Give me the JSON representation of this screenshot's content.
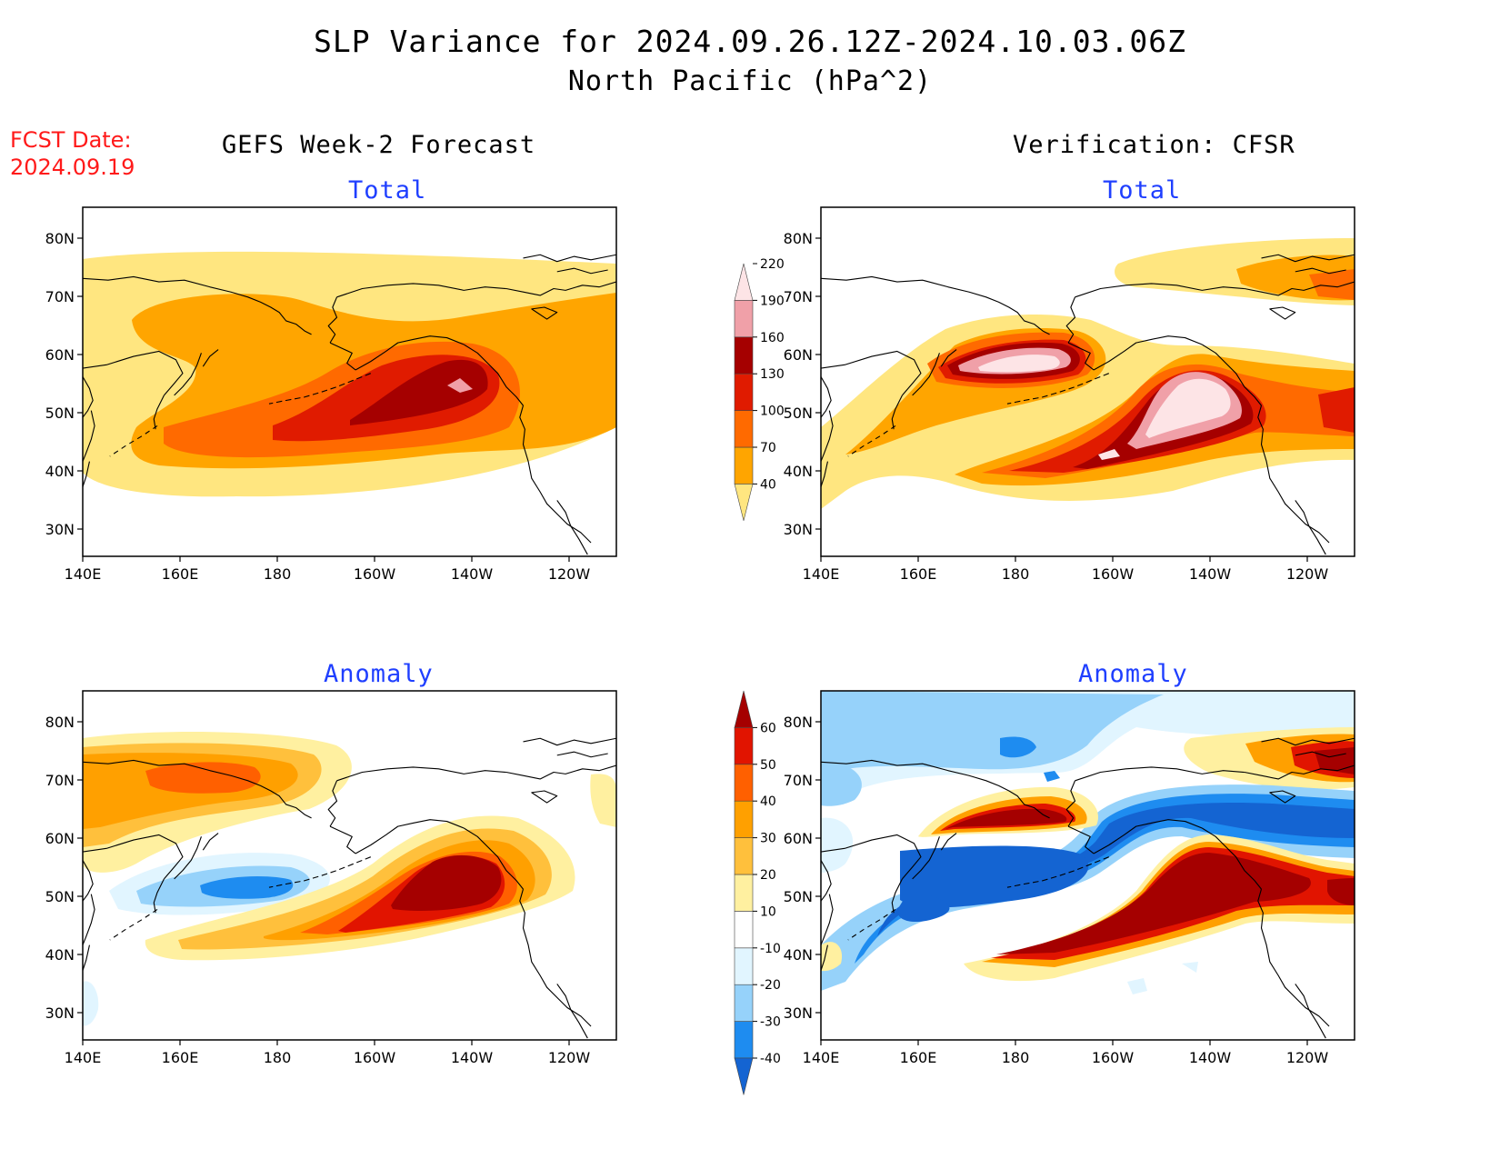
{
  "title_line1": "SLP Variance for 2024.09.26.12Z-2024.10.03.06Z",
  "title_line2": "North Pacific (hPa^2)",
  "fcst_date_label": "FCST Date:",
  "fcst_date_value": "2024.09.19",
  "left_column_title": "GEFS Week-2 Forecast",
  "right_column_title": "Verification: CFSR",
  "panel_titles": {
    "total": "Total",
    "anomaly": "Anomaly"
  },
  "lon_labels": [
    "140E",
    "160E",
    "180",
    "160W",
    "140W",
    "120W"
  ],
  "lat_labels": [
    "80N",
    "70N",
    "60N",
    "50N",
    "40N",
    "30N"
  ],
  "total_colorbar": {
    "levels": [
      "40",
      "70",
      "100",
      "130",
      "160",
      "190",
      "220"
    ],
    "colors": [
      "#ffe680",
      "#ffa500",
      "#ff6a00",
      "#e01b00",
      "#a50000",
      "#f0a0a8",
      "#fde4e6"
    ]
  },
  "anomaly_colorbar": {
    "levels": [
      "-40",
      "-30",
      "-20",
      "-10",
      "10",
      "20",
      "30",
      "40",
      "50",
      "60"
    ],
    "colors": [
      "#1464d2",
      "#1e8cf0",
      "#96d2fa",
      "#e1f5ff",
      "#ffffff",
      "#fff0a0",
      "#ffc03c",
      "#ffa000",
      "#ff6000",
      "#e11400",
      "#a50000"
    ]
  },
  "chart_data": [
    {
      "type": "heatmap",
      "panel": "forecast-total",
      "title": "Total",
      "source": "GEFS Week-2 Forecast",
      "units": "hPa^2",
      "xlim": [
        "140E",
        "110W"
      ],
      "ylim": [
        "25N",
        "85N"
      ],
      "max_region": "Gulf of Alaska 55N 145W, 190-220"
    },
    {
      "type": "heatmap",
      "panel": "verification-total",
      "title": "Total",
      "source": "Verification: CFSR",
      "units": "hPa^2",
      "xlim": [
        "140E",
        "110W"
      ],
      "ylim": [
        "25N",
        "85N"
      ],
      "max_region": "Gulf of Alaska 52N 140W and Bering Sea 60N 178E, >220"
    },
    {
      "type": "heatmap",
      "panel": "forecast-anomaly",
      "title": "Anomaly",
      "source": "GEFS Week-2 Forecast",
      "units": "hPa^2",
      "xlim": [
        "140E",
        "110W"
      ],
      "ylim": [
        "25N",
        "85N"
      ]
    },
    {
      "type": "heatmap",
      "panel": "verification-anomaly",
      "title": "Anomaly",
      "source": "Verification: CFSR",
      "units": "hPa^2",
      "xlim": [
        "140E",
        "110W"
      ],
      "ylim": [
        "25N",
        "85N"
      ]
    }
  ]
}
